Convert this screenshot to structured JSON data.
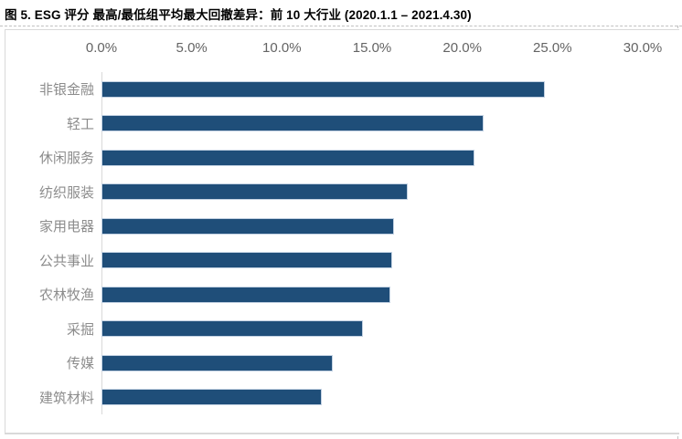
{
  "title": "图 5. ESG 评分 最高/最低组平均最大回撤差异：前 10 大行业 (2020.1.1 – 2021.4.30)",
  "colors": {
    "bar": "#1f4e79",
    "bar_border": "#c2d1e2",
    "axis_line": "#d9d9d9",
    "panel_border": "#d9d9d9",
    "tick_label": "#646464",
    "category_label": "#8c8c8c",
    "title_text": "#000000"
  },
  "chart_data": {
    "type": "bar",
    "orientation": "horizontal",
    "title": "图 5. ESG 评分 最高/最低组平均最大回撤差异：前 10 大行业 (2020.1.1 – 2021.4.30)",
    "categories": [
      "非银金融",
      "轻工",
      "休闲服务",
      "纺织服装",
      "家用电器",
      "公共事业",
      "农林牧渔",
      "采掘",
      "传媒",
      "建筑材料"
    ],
    "values": [
      24.6,
      21.2,
      20.7,
      17.0,
      16.2,
      16.1,
      16.0,
      14.5,
      12.8,
      12.2
    ],
    "value_unit": "%",
    "xlim": [
      0,
      30
    ],
    "x_tick_values": [
      0,
      5,
      10,
      15,
      20,
      25,
      30
    ],
    "x_tick_labels": [
      "0.0%",
      "5.0%",
      "10.0%",
      "15.0%",
      "20.0%",
      "25.0%",
      "30.0%"
    ],
    "axis_position": "top",
    "grid": false,
    "legend": "none"
  }
}
